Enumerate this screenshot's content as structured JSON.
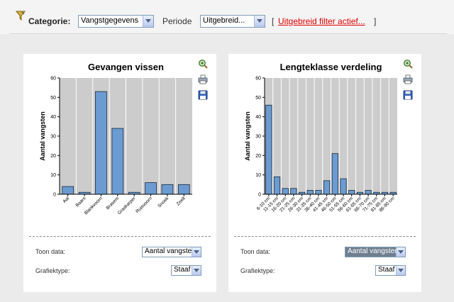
{
  "filter": {
    "category_label": "Categorie:",
    "category_value": "Vangstgegevens",
    "period_label": "Periode",
    "period_value": "Uitgebreid...",
    "bracket_open": "[",
    "filter_link": "Uitgebreid filter actief...",
    "bracket_close": "]"
  },
  "panels": [
    {
      "toon_label": "Toon data:",
      "toon_value": "Aantal vangsten",
      "type_label": "Grafiektype:",
      "type_value": "Staaf"
    },
    {
      "toon_label": "Toon data:",
      "toon_value": "Aantal vangsten",
      "type_label": "Grafiektype:",
      "type_value": "Staaf"
    }
  ],
  "colors": {
    "bar": "#6b9bd1",
    "plot_bg": "#cccccc",
    "link": "#e00000"
  },
  "chart_data": [
    {
      "type": "bar",
      "title": "Gevangen vissen",
      "ylabel": "Aantal vangsten",
      "xlabel": "",
      "ylim": [
        0,
        60
      ],
      "yticks": [
        0,
        10,
        20,
        30,
        40,
        50,
        60
      ],
      "categories": [
        "Aal",
        "Baars",
        "Blankvoorn",
        "Brasem",
        "Graskarper",
        "Ruisvoorn",
        "Snoek",
        "Zeelt"
      ],
      "values": [
        4,
        1,
        53,
        34,
        1,
        6,
        5,
        5
      ],
      "grid": "vertical"
    },
    {
      "type": "bar",
      "title": "Lengteklasse verdeling",
      "ylabel": "Aantal vangsten",
      "xlabel": "",
      "ylim": [
        0,
        60
      ],
      "yticks": [
        0,
        10,
        20,
        30,
        40,
        50,
        60
      ],
      "categories": [
        "6-10 cm",
        "11-15 cm",
        "16-20 cm",
        "21-25 cm",
        "26-30 cm",
        "31-35 cm",
        "36-40 cm",
        "41-45 cm",
        "46-50 cm",
        "51-55 cm",
        "56-60 cm",
        "61-65 cm",
        "66-70 cm",
        "71-75 cm",
        "81-85 cm",
        "86-90 cm"
      ],
      "values": [
        46,
        9,
        3,
        3,
        1,
        2,
        2,
        7,
        21,
        8,
        2,
        1,
        2,
        1,
        1,
        1
      ],
      "grid": "vertical"
    }
  ]
}
